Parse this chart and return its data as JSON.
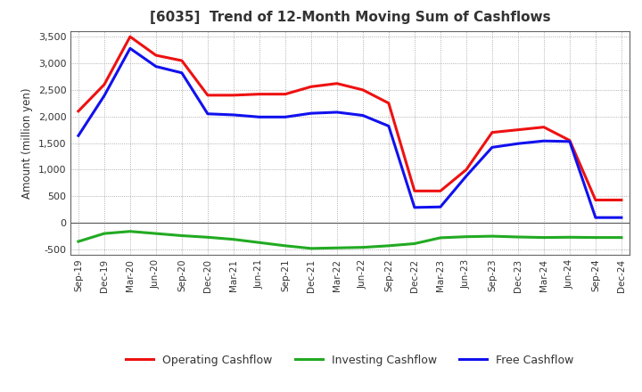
{
  "title": "[6035]  Trend of 12-Month Moving Sum of Cashflows",
  "ylabel": "Amount (million yen)",
  "xlabels": [
    "Sep-19",
    "Dec-19",
    "Mar-20",
    "Jun-20",
    "Sep-20",
    "Dec-20",
    "Mar-21",
    "Jun-21",
    "Sep-21",
    "Dec-21",
    "Mar-22",
    "Jun-22",
    "Sep-22",
    "Dec-22",
    "Mar-23",
    "Jun-23",
    "Sep-23",
    "Dec-23",
    "Mar-24",
    "Jun-24",
    "Sep-24",
    "Dec-24"
  ],
  "operating": [
    2100,
    2600,
    3500,
    3150,
    3050,
    2400,
    2400,
    2420,
    2420,
    2560,
    2620,
    2500,
    2250,
    600,
    600,
    1000,
    1700,
    1750,
    1800,
    1550,
    430,
    430
  ],
  "investing": [
    -350,
    -200,
    -160,
    -200,
    -240,
    -270,
    -310,
    -370,
    -430,
    -480,
    -470,
    -460,
    -430,
    -390,
    -280,
    -260,
    -250,
    -265,
    -275,
    -270,
    -275,
    -275
  ],
  "free": [
    1640,
    2390,
    3280,
    2940,
    2820,
    2050,
    2030,
    1990,
    1990,
    2060,
    2080,
    2020,
    1820,
    290,
    300,
    880,
    1420,
    1490,
    1540,
    1530,
    100,
    100
  ],
  "operating_color": "#EE1111",
  "investing_color": "#22AA22",
  "free_color": "#1111EE",
  "ylim_min": -600,
  "ylim_max": 3600,
  "yticks": [
    -500,
    0,
    500,
    1000,
    1500,
    2000,
    2500,
    3000,
    3500
  ],
  "background_color": "#FFFFFF",
  "grid_color": "#999999",
  "title_color": "#333333",
  "linewidth": 2.2,
  "spine_color": "#666666"
}
